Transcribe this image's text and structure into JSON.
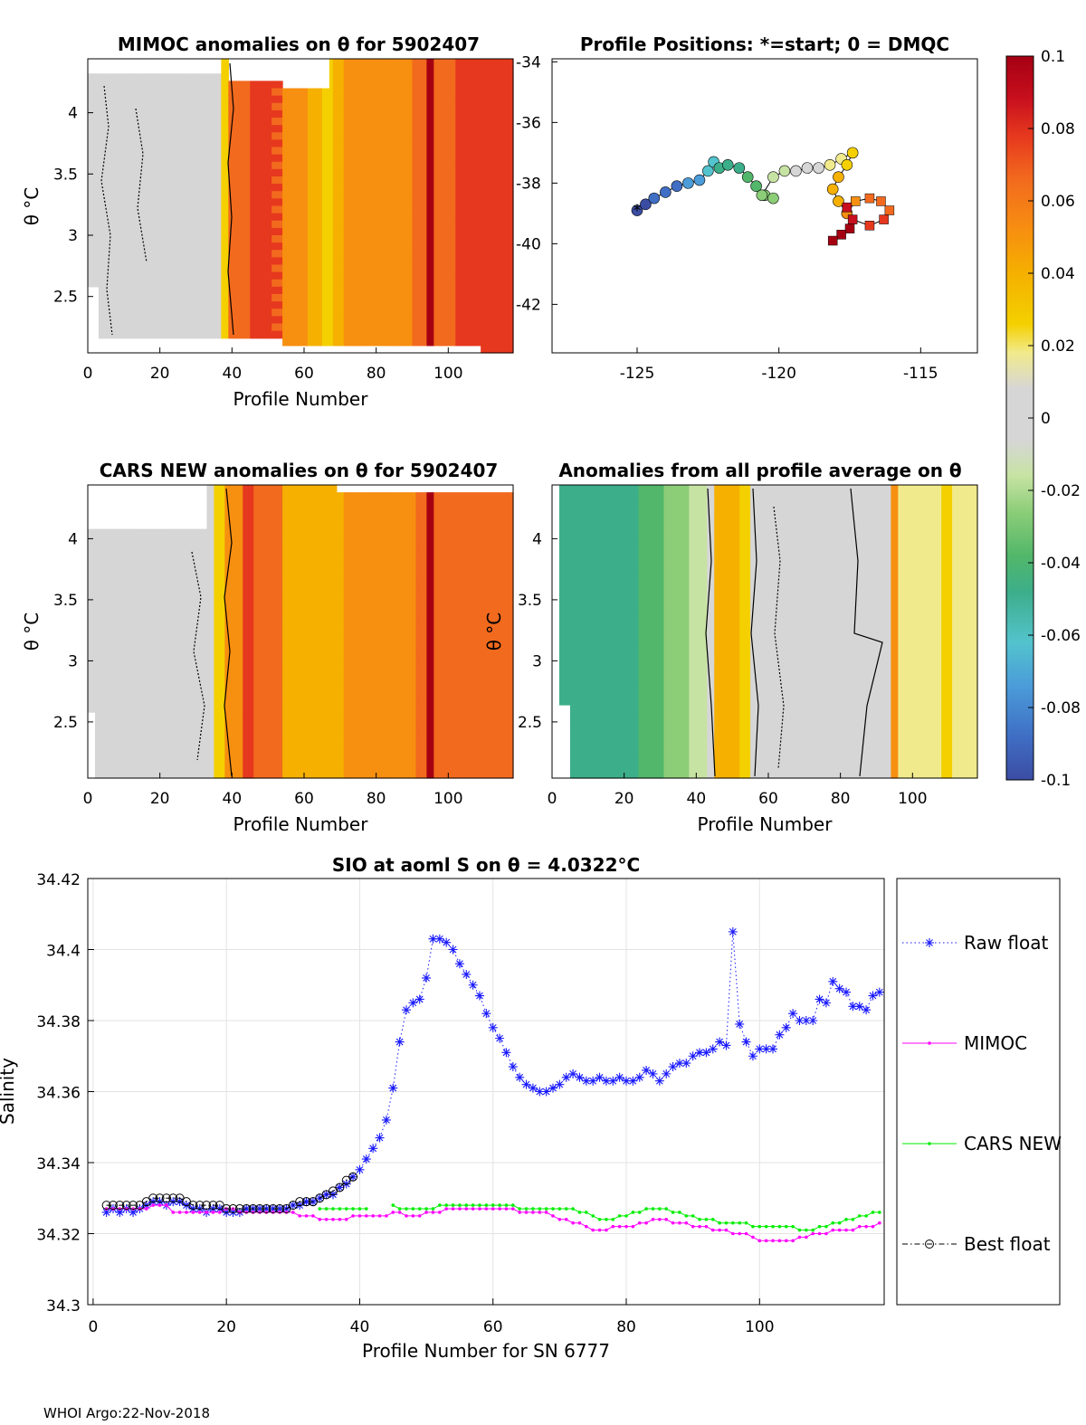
{
  "footer": "WHOI Argo:22-Nov-2018",
  "colormap": [
    "#3b4da3",
    "#3f6ec4",
    "#4b9cd9",
    "#53c3cd",
    "#3dae8a",
    "#52b76a",
    "#8ccd78",
    "#c7e3a3",
    "#d6d6d6",
    "#f1ea8c",
    "#f4d000",
    "#f5b000",
    "#f78f10",
    "#f26a1e",
    "#e6381e",
    "#c8101e",
    "#a50012"
  ],
  "colors": {
    "raw": "#1a1aff",
    "mimoc": "#ff00ff",
    "cars": "#00ee00",
    "best": "#000000"
  },
  "panels": {
    "mimoc": {
      "title": "MIMOC anomalies on θ  for 5902407",
      "ylabel": "θ °C",
      "xlabel": "Profile Number",
      "xticks": [
        "0",
        "20",
        "40",
        "60",
        "80",
        "100"
      ],
      "yticks": [
        "2.5",
        "3",
        "3.5",
        "4"
      ]
    },
    "positions": {
      "title": "Profile Positions: *=start; 0 = DMQC",
      "xticks": [
        "-125",
        "-120",
        "-115"
      ],
      "yticks": [
        "-34",
        "-36",
        "-38",
        "-40",
        "-42"
      ]
    },
    "colorbar": {
      "ticks": [
        "0.1",
        "0.08",
        "0.06",
        "0.04",
        "0.02",
        "0",
        "-0.02",
        "-0.04",
        "-0.06",
        "-0.08",
        "-0.1"
      ]
    },
    "cars": {
      "title": "CARS NEW anomalies on θ for 5902407",
      "ylabel": "θ °C",
      "xlabel": "Profile Number",
      "xticks": [
        "0",
        "20",
        "40",
        "60",
        "80",
        "100"
      ],
      "yticks": [
        "2.5",
        "3",
        "3.5",
        "4"
      ]
    },
    "avg": {
      "title": "Anomalies from all profile average on θ",
      "ylabel": "θ °C",
      "xlabel": "Profile Number",
      "xticks": [
        "0",
        "20",
        "40",
        "60",
        "80",
        "100"
      ],
      "yticks": [
        "2.5",
        "3",
        "3.5",
        "4"
      ]
    }
  },
  "chart_data": {
    "type": "line",
    "title": "SIO at aoml S on θ = 4.0322°C",
    "xlabel": "Profile Number for SN 6777",
    "ylabel": "Salinity",
    "xlim": [
      0,
      118
    ],
    "ylim": [
      34.3,
      34.42
    ],
    "xticks": [
      "0",
      "20",
      "40",
      "60",
      "80",
      "100"
    ],
    "yticks": [
      "34.3",
      "34.32",
      "34.34",
      "34.36",
      "34.38",
      "34.4",
      "34.42"
    ],
    "legend": [
      "Raw float",
      "MIMOC",
      "CARS NEW",
      "Best float"
    ],
    "series": [
      {
        "name": "Raw float",
        "x": [
          2,
          3,
          4,
          5,
          6,
          7,
          8,
          9,
          10,
          11,
          12,
          13,
          14,
          15,
          16,
          17,
          18,
          19,
          20,
          21,
          22,
          23,
          24,
          25,
          26,
          27,
          28,
          29,
          30,
          31,
          32,
          33,
          34,
          35,
          36,
          37,
          38,
          39,
          40,
          41,
          42,
          43,
          44,
          45,
          46,
          47,
          48,
          49,
          50,
          51,
          52,
          53,
          54,
          55,
          56,
          57,
          58,
          59,
          60,
          61,
          62,
          63,
          64,
          65,
          66,
          67,
          68,
          69,
          70,
          71,
          72,
          73,
          74,
          75,
          76,
          77,
          78,
          79,
          80,
          81,
          82,
          83,
          84,
          85,
          86,
          87,
          88,
          89,
          90,
          91,
          92,
          93,
          94,
          95,
          96,
          97,
          98,
          99,
          100,
          101,
          102,
          103,
          104,
          105,
          106,
          107,
          108,
          109,
          110,
          111,
          112,
          113,
          114,
          115,
          116,
          117,
          118
        ],
        "values": [
          34.326,
          34.327,
          34.326,
          34.327,
          34.326,
          34.327,
          34.328,
          34.329,
          34.329,
          34.328,
          34.329,
          34.329,
          34.328,
          34.327,
          34.327,
          34.326,
          34.327,
          34.327,
          34.326,
          34.326,
          34.326,
          34.327,
          34.327,
          34.327,
          34.327,
          34.327,
          34.327,
          34.327,
          34.328,
          34.328,
          34.329,
          34.329,
          34.33,
          34.331,
          34.331,
          34.333,
          34.334,
          34.336,
          34.338,
          34.341,
          34.344,
          34.347,
          34.352,
          34.361,
          34.374,
          34.383,
          34.385,
          34.386,
          34.392,
          34.403,
          34.403,
          34.402,
          34.4,
          34.396,
          34.393,
          34.39,
          34.387,
          34.382,
          34.378,
          34.375,
          34.371,
          34.367,
          34.364,
          34.362,
          34.361,
          34.36,
          34.36,
          34.361,
          34.362,
          34.364,
          34.365,
          34.364,
          34.363,
          34.363,
          34.364,
          34.363,
          34.363,
          34.364,
          34.363,
          34.363,
          34.364,
          34.366,
          34.365,
          34.363,
          34.365,
          34.367,
          34.368,
          34.368,
          34.37,
          34.371,
          34.371,
          34.372,
          34.374,
          34.373,
          34.405,
          34.379,
          34.374,
          34.37,
          34.372,
          34.372,
          34.372,
          34.376,
          34.378,
          34.382,
          34.38,
          34.38,
          34.38,
          34.386,
          34.385,
          34.391,
          34.389,
          34.388,
          34.384,
          34.384,
          34.383,
          34.387,
          34.388
        ]
      },
      {
        "name": "MIMOC",
        "x": [
          2,
          3,
          4,
          5,
          6,
          7,
          8,
          9,
          10,
          11,
          12,
          13,
          14,
          15,
          16,
          17,
          18,
          19,
          20,
          21,
          22,
          23,
          24,
          25,
          26,
          27,
          28,
          29,
          30,
          31,
          32,
          33,
          34,
          35,
          36,
          37,
          38,
          39,
          40,
          41,
          42,
          43,
          44,
          45,
          46,
          47,
          48,
          49,
          50,
          51,
          52,
          53,
          54,
          55,
          56,
          57,
          58,
          59,
          60,
          61,
          62,
          63,
          64,
          65,
          66,
          67,
          68,
          69,
          70,
          71,
          72,
          73,
          74,
          75,
          76,
          77,
          78,
          79,
          80,
          81,
          82,
          83,
          84,
          85,
          86,
          87,
          88,
          89,
          90,
          91,
          92,
          93,
          94,
          95,
          96,
          97,
          98,
          99,
          100,
          101,
          102,
          103,
          104,
          105,
          106,
          107,
          108,
          109,
          110,
          111,
          112,
          113,
          114,
          115,
          116,
          117,
          118
        ],
        "values": [
          34.327,
          34.327,
          34.327,
          34.327,
          34.327,
          34.327,
          34.327,
          34.328,
          34.328,
          34.328,
          34.326,
          34.326,
          34.326,
          34.326,
          34.326,
          34.326,
          34.326,
          34.326,
          34.327,
          34.327,
          34.326,
          34.326,
          34.326,
          34.326,
          34.326,
          34.326,
          34.326,
          34.326,
          34.326,
          34.325,
          34.325,
          34.325,
          34.324,
          34.324,
          34.324,
          34.324,
          34.324,
          34.325,
          34.325,
          34.325,
          34.325,
          34.325,
          34.325,
          34.326,
          34.326,
          34.325,
          34.325,
          34.325,
          34.326,
          34.326,
          34.326,
          34.327,
          34.327,
          34.327,
          34.327,
          34.327,
          34.327,
          34.327,
          34.327,
          34.327,
          34.327,
          34.327,
          34.326,
          34.326,
          34.326,
          34.326,
          34.326,
          34.325,
          34.324,
          34.324,
          34.323,
          34.323,
          34.322,
          34.321,
          34.321,
          34.321,
          34.322,
          34.322,
          34.322,
          34.322,
          34.323,
          34.323,
          34.324,
          34.324,
          34.324,
          34.323,
          34.323,
          34.323,
          34.322,
          34.322,
          34.322,
          34.321,
          34.321,
          34.321,
          34.32,
          34.32,
          34.32,
          34.319,
          34.318,
          34.318,
          34.318,
          34.318,
          34.318,
          34.318,
          34.319,
          34.319,
          34.32,
          34.32,
          34.32,
          34.321,
          34.321,
          34.321,
          34.321,
          34.322,
          34.322,
          34.322,
          34.323
        ]
      },
      {
        "name": "CARS NEW",
        "x": [
          34,
          35,
          36,
          37,
          38,
          39,
          40,
          41,
          45,
          46,
          47,
          48,
          49,
          50,
          51,
          52,
          53,
          54,
          55,
          56,
          57,
          58,
          59,
          60,
          61,
          62,
          63,
          64,
          65,
          66,
          67,
          68,
          69,
          70,
          71,
          72,
          73,
          74,
          75,
          76,
          77,
          78,
          79,
          80,
          81,
          82,
          83,
          84,
          85,
          86,
          87,
          88,
          89,
          90,
          91,
          92,
          93,
          94,
          95,
          96,
          97,
          98,
          99,
          100,
          101,
          102,
          103,
          104,
          105,
          106,
          107,
          108,
          109,
          110,
          111,
          112,
          113,
          114,
          115,
          116,
          117,
          118
        ],
        "values": [
          34.327,
          34.327,
          34.327,
          34.327,
          34.327,
          34.327,
          34.327,
          34.327,
          34.328,
          34.327,
          34.327,
          34.327,
          34.327,
          34.327,
          34.327,
          34.328,
          34.328,
          34.328,
          34.328,
          34.328,
          34.328,
          34.328,
          34.328,
          34.328,
          34.328,
          34.328,
          34.328,
          34.327,
          34.327,
          34.327,
          34.327,
          34.327,
          34.327,
          34.327,
          34.327,
          34.327,
          34.326,
          34.326,
          34.325,
          34.324,
          34.324,
          34.324,
          34.325,
          34.325,
          34.326,
          34.326,
          34.327,
          34.327,
          34.327,
          34.327,
          34.326,
          34.326,
          34.325,
          34.325,
          34.324,
          34.324,
          34.324,
          34.323,
          34.323,
          34.323,
          34.323,
          34.323,
          34.322,
          34.322,
          34.322,
          34.322,
          34.322,
          34.322,
          34.322,
          34.321,
          34.321,
          34.321,
          34.322,
          34.322,
          34.323,
          34.323,
          34.324,
          34.324,
          34.325,
          34.325,
          34.326,
          34.326
        ]
      },
      {
        "name": "Best float",
        "x": [
          2,
          3,
          4,
          5,
          6,
          7,
          8,
          9,
          10,
          11,
          12,
          13,
          14,
          15,
          16,
          17,
          18,
          19,
          20,
          21,
          22,
          23,
          24,
          25,
          26,
          27,
          28,
          29,
          30,
          31,
          32,
          33,
          34,
          35,
          36,
          37,
          38,
          39
        ],
        "values": [
          34.328,
          34.328,
          34.328,
          34.328,
          34.328,
          34.328,
          34.329,
          34.33,
          34.33,
          34.33,
          34.33,
          34.33,
          34.329,
          34.328,
          34.328,
          34.328,
          34.328,
          34.328,
          34.327,
          34.327,
          34.327,
          34.327,
          34.327,
          34.327,
          34.327,
          34.327,
          34.327,
          34.327,
          34.328,
          34.329,
          34.329,
          34.329,
          34.33,
          34.331,
          34.332,
          34.333,
          34.335,
          34.336
        ]
      }
    ]
  }
}
